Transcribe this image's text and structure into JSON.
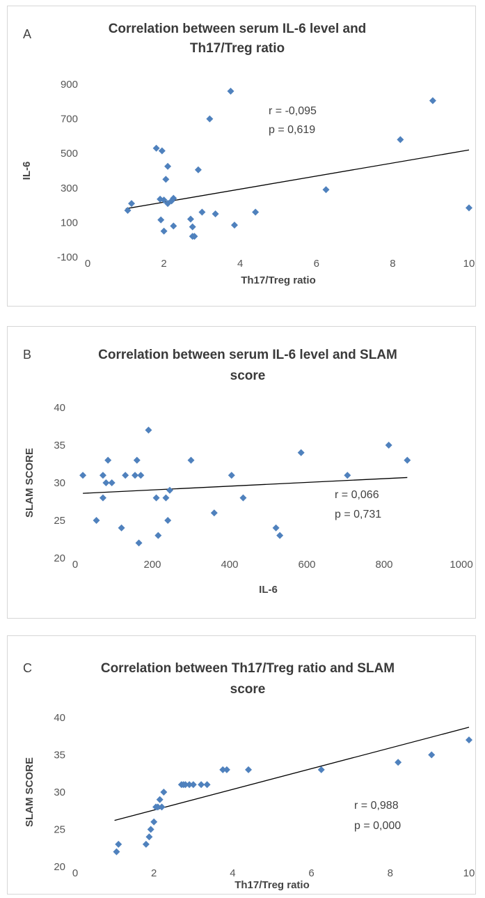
{
  "chart_data": [
    {
      "type": "scatter",
      "panel_label": "A",
      "title_lines": [
        "Correlation between serum IL-6 level and",
        "Th17/Treg ratio"
      ],
      "xlabel": "Th17/Treg ratio",
      "ylabel": "IL-6",
      "xlim": [
        0,
        10
      ],
      "ylim": [
        -100,
        900
      ],
      "xticks": [
        "0",
        "2",
        "4",
        "6",
        "8",
        "10"
      ],
      "yticks": [
        "-100",
        "100",
        "300",
        "500",
        "700",
        "900"
      ],
      "stats": [
        "r = -0,095",
        "p = 0,619"
      ],
      "marker_color": "#4F81BD",
      "trendline_color": "#000000",
      "trendline": {
        "x": [
          1.0,
          10.0
        ],
        "y": [
          180,
          520
        ]
      },
      "points": [
        {
          "x": 1.05,
          "y": 170
        },
        {
          "x": 1.15,
          "y": 210
        },
        {
          "x": 1.8,
          "y": 530
        },
        {
          "x": 1.95,
          "y": 515
        },
        {
          "x": 1.9,
          "y": 235
        },
        {
          "x": 2.0,
          "y": 230
        },
        {
          "x": 1.92,
          "y": 115
        },
        {
          "x": 2.0,
          "y": 50
        },
        {
          "x": 2.05,
          "y": 350
        },
        {
          "x": 2.1,
          "y": 425
        },
        {
          "x": 2.1,
          "y": 210
        },
        {
          "x": 2.2,
          "y": 225
        },
        {
          "x": 2.25,
          "y": 240
        },
        {
          "x": 2.25,
          "y": 80
        },
        {
          "x": 2.7,
          "y": 120
        },
        {
          "x": 2.75,
          "y": 75
        },
        {
          "x": 2.75,
          "y": 20
        },
        {
          "x": 2.8,
          "y": 20
        },
        {
          "x": 2.9,
          "y": 405
        },
        {
          "x": 3.0,
          "y": 160
        },
        {
          "x": 3.2,
          "y": 700
        },
        {
          "x": 3.35,
          "y": 150
        },
        {
          "x": 3.75,
          "y": 860
        },
        {
          "x": 3.85,
          "y": 85
        },
        {
          "x": 4.4,
          "y": 160
        },
        {
          "x": 6.25,
          "y": 290
        },
        {
          "x": 8.2,
          "y": 580
        },
        {
          "x": 9.05,
          "y": 805
        },
        {
          "x": 10.0,
          "y": 185
        }
      ]
    },
    {
      "type": "scatter",
      "panel_label": "B",
      "title_lines": [
        "Correlation between serum IL-6 level and SLAM",
        "score"
      ],
      "xlabel": "IL-6",
      "ylabel": "SLAM SCORE",
      "xlim": [
        0,
        1000
      ],
      "ylim": [
        20,
        40
      ],
      "xticks": [
        "0",
        "200",
        "400",
        "600",
        "800",
        "1000"
      ],
      "yticks": [
        "20",
        "25",
        "30",
        "35",
        "40"
      ],
      "stats": [
        "r = 0,066",
        "p = 0,731"
      ],
      "marker_color": "#4F81BD",
      "trendline_color": "#000000",
      "trendline": {
        "x": [
          20,
          860
        ],
        "y": [
          28.6,
          30.7
        ]
      },
      "points": [
        {
          "x": 20,
          "y": 31
        },
        {
          "x": 55,
          "y": 25
        },
        {
          "x": 72,
          "y": 28
        },
        {
          "x": 72,
          "y": 31
        },
        {
          "x": 80,
          "y": 30
        },
        {
          "x": 85,
          "y": 33
        },
        {
          "x": 95,
          "y": 30
        },
        {
          "x": 120,
          "y": 24
        },
        {
          "x": 130,
          "y": 31
        },
        {
          "x": 155,
          "y": 31
        },
        {
          "x": 160,
          "y": 33
        },
        {
          "x": 165,
          "y": 22
        },
        {
          "x": 170,
          "y": 31
        },
        {
          "x": 190,
          "y": 37
        },
        {
          "x": 210,
          "y": 28
        },
        {
          "x": 215,
          "y": 23
        },
        {
          "x": 235,
          "y": 28
        },
        {
          "x": 240,
          "y": 25
        },
        {
          "x": 245,
          "y": 29
        },
        {
          "x": 300,
          "y": 33
        },
        {
          "x": 360,
          "y": 26
        },
        {
          "x": 405,
          "y": 31
        },
        {
          "x": 435,
          "y": 28
        },
        {
          "x": 520,
          "y": 24
        },
        {
          "x": 530,
          "y": 23
        },
        {
          "x": 585,
          "y": 34
        },
        {
          "x": 705,
          "y": 31
        },
        {
          "x": 812,
          "y": 35
        },
        {
          "x": 860,
          "y": 33
        }
      ]
    },
    {
      "type": "scatter",
      "panel_label": "C",
      "title_lines": [
        "Correlation between Th17/Treg ratio and SLAM",
        "score"
      ],
      "xlabel": "Th17/Treg ratio",
      "ylabel": "SLAM SCORE",
      "xlim": [
        0,
        10
      ],
      "ylim": [
        20,
        40
      ],
      "xticks": [
        "0",
        "2",
        "4",
        "6",
        "8",
        "10"
      ],
      "yticks": [
        "20",
        "25",
        "30",
        "35",
        "40"
      ],
      "stats": [
        "r = 0,988",
        "p = 0,000"
      ],
      "marker_color": "#4F81BD",
      "trendline_color": "#000000",
      "trendline": {
        "x": [
          1.0,
          10.0
        ],
        "y": [
          26.2,
          38.7
        ]
      },
      "points": [
        {
          "x": 1.05,
          "y": 22
        },
        {
          "x": 1.1,
          "y": 23
        },
        {
          "x": 1.8,
          "y": 23
        },
        {
          "x": 1.88,
          "y": 24
        },
        {
          "x": 1.92,
          "y": 25
        },
        {
          "x": 2.0,
          "y": 26
        },
        {
          "x": 2.05,
          "y": 28
        },
        {
          "x": 2.1,
          "y": 28
        },
        {
          "x": 2.15,
          "y": 29
        },
        {
          "x": 2.2,
          "y": 28
        },
        {
          "x": 2.25,
          "y": 30
        },
        {
          "x": 2.7,
          "y": 31
        },
        {
          "x": 2.75,
          "y": 31
        },
        {
          "x": 2.8,
          "y": 31
        },
        {
          "x": 2.9,
          "y": 31
        },
        {
          "x": 3.0,
          "y": 31
        },
        {
          "x": 3.2,
          "y": 31
        },
        {
          "x": 3.35,
          "y": 31
        },
        {
          "x": 3.75,
          "y": 33
        },
        {
          "x": 3.85,
          "y": 33
        },
        {
          "x": 4.4,
          "y": 33
        },
        {
          "x": 6.25,
          "y": 33
        },
        {
          "x": 8.2,
          "y": 34
        },
        {
          "x": 9.05,
          "y": 35
        },
        {
          "x": 10.0,
          "y": 37
        }
      ]
    }
  ]
}
